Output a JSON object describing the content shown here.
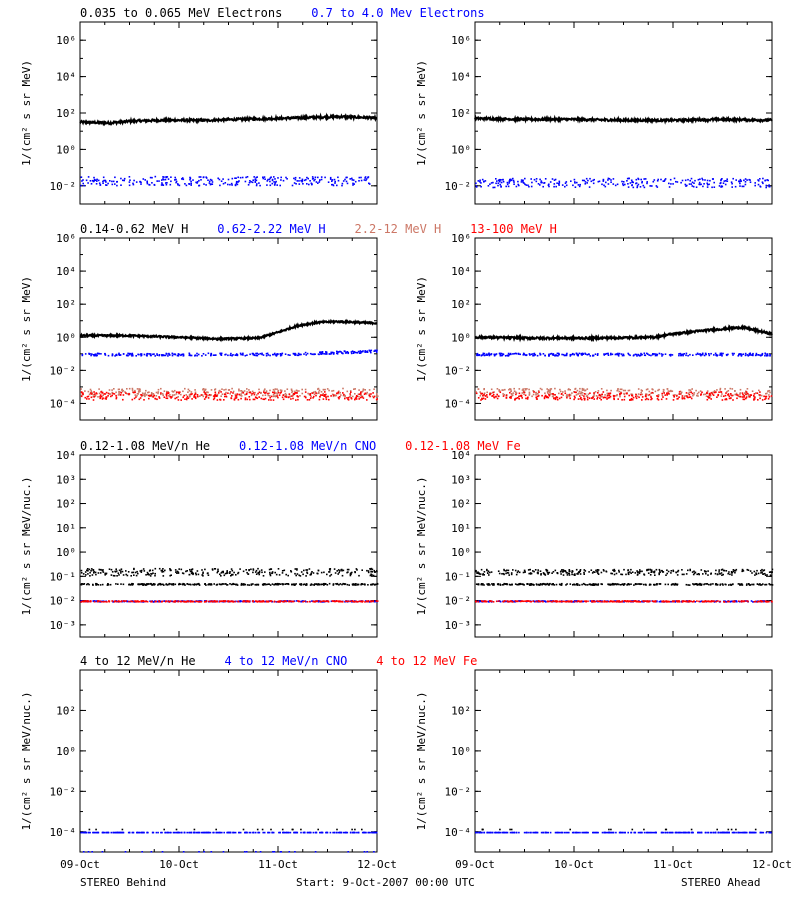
{
  "colors": {
    "black": "#000000",
    "blue": "#0000ff",
    "tan": "#cc7766",
    "red": "#ff0000"
  },
  "footer": {
    "left": "STEREO Behind",
    "center": "Start:  9-Oct-2007 00:00 UTC",
    "right": "STEREO Ahead"
  },
  "x_axis": {
    "tick_labels": [
      "09-Oct",
      "10-Oct",
      "11-Oct",
      "12-Oct"
    ],
    "domain_days": [
      0,
      3
    ]
  },
  "chart_data": [
    {
      "type": "scatter",
      "row": 1,
      "headers": [
        {
          "text": "0.035 to 0.065 MeV Electrons",
          "color": "#000000"
        },
        {
          "text": "0.7 to 4.0 Mev Electrons",
          "color": "#0000ff"
        }
      ],
      "ylabel": "1/(cm² s sr MeV)",
      "yscale": "log",
      "ylim_exp": [
        -3,
        7
      ],
      "yticks": [
        {
          "exp": 6,
          "label": "10⁶"
        },
        {
          "exp": 4,
          "label": "10⁴"
        },
        {
          "exp": 2,
          "label": "10²"
        },
        {
          "exp": 0,
          "label": "10⁰"
        },
        {
          "exp": -2,
          "label": "10⁻²"
        }
      ],
      "panels": [
        {
          "name": "STEREO Behind",
          "series": [
            {
              "color": "#000000",
              "mode": "line",
              "x": [
                0,
                0.3,
                0.5,
                0.8,
                1.0,
                1.3,
                1.6,
                2.0,
                2.3,
                2.6,
                2.9,
                3.0
              ],
              "log10_y": [
                1.5,
                1.45,
                1.55,
                1.6,
                1.6,
                1.6,
                1.65,
                1.7,
                1.75,
                1.8,
                1.75,
                1.7
              ],
              "jitter": 0.06
            },
            {
              "color": "#0000ff",
              "mode": "dots",
              "x": [
                0,
                1.5,
                3.0
              ],
              "log10_y": [
                -1.7,
                -1.7,
                -1.7
              ],
              "jitter": 0.25
            }
          ]
        },
        {
          "name": "STEREO Ahead",
          "series": [
            {
              "color": "#000000",
              "mode": "line",
              "x": [
                0,
                0.5,
                1.0,
                1.5,
                2.0,
                2.5,
                3.0
              ],
              "log10_y": [
                1.7,
                1.65,
                1.65,
                1.6,
                1.6,
                1.65,
                1.6
              ],
              "jitter": 0.06
            },
            {
              "color": "#0000ff",
              "mode": "dots",
              "x": [
                0,
                1.5,
                3.0
              ],
              "log10_y": [
                -1.8,
                -1.8,
                -1.8
              ],
              "jitter": 0.25
            }
          ]
        }
      ]
    },
    {
      "type": "scatter",
      "row": 2,
      "headers": [
        {
          "text": "0.14-0.62 MeV H",
          "color": "#000000"
        },
        {
          "text": "0.62-2.22 MeV H",
          "color": "#0000ff"
        },
        {
          "text": "2.2-12 MeV H",
          "color": "#cc7766"
        },
        {
          "text": "13-100 MeV H",
          "color": "#ff0000"
        }
      ],
      "ylabel": "1/(cm² s sr MeV)",
      "yscale": "log",
      "ylim_exp": [
        -5,
        6
      ],
      "yticks": [
        {
          "exp": 6,
          "label": "10⁶"
        },
        {
          "exp": 4,
          "label": "10⁴"
        },
        {
          "exp": 2,
          "label": "10²"
        },
        {
          "exp": 0,
          "label": "10⁰"
        },
        {
          "exp": -2,
          "label": "10⁻²"
        },
        {
          "exp": -4,
          "label": "10⁻⁴"
        }
      ],
      "panels": [
        {
          "name": "STEREO Behind",
          "series": [
            {
              "color": "#000000",
              "mode": "line",
              "x": [
                0,
                0.5,
                1.0,
                1.4,
                1.8,
                2.0,
                2.2,
                2.4,
                2.6,
                2.8,
                3.0
              ],
              "log10_y": [
                0.1,
                0.1,
                0.0,
                -0.1,
                -0.05,
                0.3,
                0.7,
                0.9,
                0.95,
                0.9,
                0.85
              ],
              "jitter": 0.05
            },
            {
              "color": "#0000ff",
              "mode": "dots",
              "x": [
                0,
                1.0,
                2.0,
                2.5,
                3.0
              ],
              "log10_y": [
                -1.0,
                -1.0,
                -1.0,
                -0.9,
                -0.8
              ],
              "jitter": 0.08
            },
            {
              "color": "#cc7766",
              "mode": "dots",
              "x": [
                0,
                1.5,
                3.0
              ],
              "log10_y": [
                -3.3,
                -3.3,
                -3.3
              ],
              "jitter": 0.25
            },
            {
              "color": "#ff0000",
              "mode": "dots",
              "x": [
                0,
                1.5,
                3.0
              ],
              "log10_y": [
                -3.5,
                -3.5,
                -3.5
              ],
              "jitter": 0.25
            }
          ]
        },
        {
          "name": "STEREO Ahead",
          "series": [
            {
              "color": "#000000",
              "mode": "line",
              "x": [
                0,
                0.6,
                1.2,
                1.8,
                2.0,
                2.3,
                2.5,
                2.7,
                2.85,
                3.0
              ],
              "log10_y": [
                0.0,
                -0.05,
                -0.05,
                0.0,
                0.2,
                0.4,
                0.5,
                0.6,
                0.4,
                0.2
              ],
              "jitter": 0.06
            },
            {
              "color": "#0000ff",
              "mode": "dots",
              "x": [
                0,
                1.5,
                3.0
              ],
              "log10_y": [
                -1.0,
                -1.0,
                -1.0
              ],
              "jitter": 0.08
            },
            {
              "color": "#cc7766",
              "mode": "dots",
              "x": [
                0,
                1.5,
                3.0
              ],
              "log10_y": [
                -3.3,
                -3.3,
                -3.3
              ],
              "jitter": 0.25
            },
            {
              "color": "#ff0000",
              "mode": "dots",
              "x": [
                0,
                1.5,
                3.0
              ],
              "log10_y": [
                -3.5,
                -3.5,
                -3.5
              ],
              "jitter": 0.25
            }
          ]
        }
      ]
    },
    {
      "type": "scatter",
      "row": 3,
      "headers": [
        {
          "text": "0.12-1.08 MeV/n He",
          "color": "#000000"
        },
        {
          "text": "0.12-1.08 MeV/n CNO",
          "color": "#0000ff"
        },
        {
          "text": "0.12-1.08 MeV Fe",
          "color": "#ff0000"
        }
      ],
      "ylabel": "1/(cm² s sr MeV/nuc.)",
      "yscale": "log",
      "ylim_exp": [
        -3.5,
        4
      ],
      "yticks": [
        {
          "exp": 4,
          "label": "10⁴"
        },
        {
          "exp": 3,
          "label": "10³"
        },
        {
          "exp": 2,
          "label": "10²"
        },
        {
          "exp": 1,
          "label": "10¹"
        },
        {
          "exp": 0,
          "label": "10⁰"
        },
        {
          "exp": -1,
          "label": "10⁻¹"
        },
        {
          "exp": -2,
          "label": "10⁻²"
        },
        {
          "exp": -3,
          "label": "10⁻³"
        }
      ],
      "panels": [
        {
          "name": "STEREO Behind",
          "series": [
            {
              "color": "#000000",
              "mode": "dots",
              "x": [
                0,
                3.0
              ],
              "log10_y": [
                -1.3,
                -1.3
              ],
              "jitter": 0.03
            },
            {
              "color": "#000000",
              "mode": "dots",
              "x": [
                0,
                3.0
              ],
              "log10_y": [
                -0.8,
                -0.8
              ],
              "jitter": 0.15
            },
            {
              "color": "#0000ff",
              "mode": "dots",
              "x": [
                0,
                3.0
              ],
              "log10_y": [
                -2.0,
                -2.0
              ],
              "jitter": 0.02
            },
            {
              "color": "#ff0000",
              "mode": "dots",
              "x": [
                0,
                3.0
              ],
              "log10_y": [
                -2.0,
                -2.0
              ],
              "jitter": 0.02
            }
          ]
        },
        {
          "name": "STEREO Ahead",
          "series": [
            {
              "color": "#000000",
              "mode": "dots",
              "x": [
                0,
                3.0
              ],
              "log10_y": [
                -1.3,
                -1.3
              ],
              "jitter": 0.03
            },
            {
              "color": "#000000",
              "mode": "dots",
              "x": [
                0,
                3.0
              ],
              "log10_y": [
                -0.8,
                -0.8
              ],
              "jitter": 0.12
            },
            {
              "color": "#0000ff",
              "mode": "dots",
              "x": [
                0,
                3.0
              ],
              "log10_y": [
                -2.0,
                -2.0
              ],
              "jitter": 0.02
            },
            {
              "color": "#ff0000",
              "mode": "dots",
              "x": [
                0,
                3.0
              ],
              "log10_y": [
                -2.0,
                -2.0
              ],
              "jitter": 0.02
            }
          ]
        }
      ]
    },
    {
      "type": "scatter",
      "row": 4,
      "headers": [
        {
          "text": "4 to 12 MeV/n He",
          "color": "#000000"
        },
        {
          "text": "4 to 12 MeV/n CNO",
          "color": "#0000ff"
        },
        {
          "text": "4 to 12 MeV Fe",
          "color": "#ff0000"
        }
      ],
      "ylabel": "1/(cm² s sr MeV/nuc.)",
      "yscale": "log",
      "ylim_exp": [
        -5,
        4
      ],
      "yticks": [
        {
          "exp": 2,
          "label": "10²"
        },
        {
          "exp": 0,
          "label": "10⁰"
        },
        {
          "exp": -2,
          "label": "10⁻²"
        },
        {
          "exp": -4,
          "label": "10⁻⁴"
        }
      ],
      "panels": [
        {
          "name": "STEREO Behind",
          "series": [
            {
              "color": "#0000ff",
              "mode": "dots",
              "x": [
                0,
                3.0
              ],
              "log10_y": [
                -4.0,
                -4.0
              ],
              "jitter": 0.0
            },
            {
              "color": "#000000",
              "mode": "dots",
              "x": [
                0,
                3.0
              ],
              "log10_y": [
                -3.85,
                -3.85
              ],
              "jitter": 0.0,
              "sparse": true
            },
            {
              "color": "#0000ff",
              "mode": "dots",
              "x": [
                0,
                3.0
              ],
              "log10_y": [
                -4.95,
                -4.95
              ],
              "jitter": 0.0,
              "sparse": true
            }
          ]
        },
        {
          "name": "STEREO Ahead",
          "series": [
            {
              "color": "#0000ff",
              "mode": "dots",
              "x": [
                0,
                3.0
              ],
              "log10_y": [
                -4.0,
                -4.0
              ],
              "jitter": 0.0
            },
            {
              "color": "#000000",
              "mode": "dots",
              "x": [
                0,
                3.0
              ],
              "log10_y": [
                -3.85,
                -3.85
              ],
              "jitter": 0.0,
              "sparse": true
            }
          ]
        }
      ]
    }
  ]
}
